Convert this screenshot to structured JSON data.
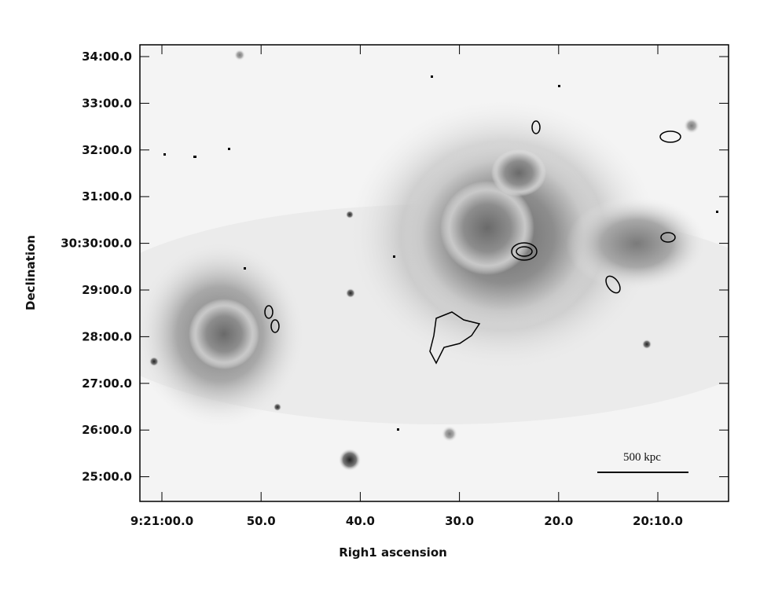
{
  "image": {
    "x_axis": {
      "label": "Righ1 ascension",
      "ticks": [
        "9:21:00.0",
        "50.0",
        "40.0",
        "30.0",
        "20.0",
        "20:10.0"
      ]
    },
    "y_axis": {
      "label": "Declination",
      "ticks": [
        "34:00.0",
        "33:00.0",
        "32:00.0",
        "31:00.0",
        "30:30:00.0",
        "29:00.0",
        "28:00.0",
        "27:00.0",
        "26:00.0",
        "25:00.0"
      ]
    },
    "scale_bar": "500 kpc"
  }
}
